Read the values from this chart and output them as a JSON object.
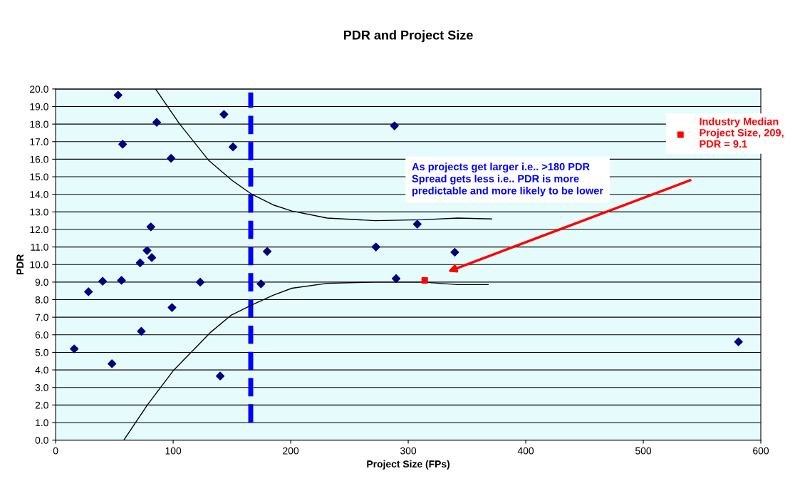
{
  "chart_data": {
    "type": "scatter",
    "title": "PDR and Project Size",
    "xlabel": "Project Size (FPs)",
    "ylabel": "PDR",
    "xlim": [
      0,
      600
    ],
    "xticks": [
      0,
      100,
      200,
      300,
      400,
      500,
      600
    ],
    "ylim": [
      0,
      20
    ],
    "yticks": [
      {
        "value": 0,
        "label": "0.0"
      },
      {
        "value": 1,
        "label": "1.0"
      },
      {
        "value": 2,
        "label": "2.0"
      },
      {
        "value": 3,
        "label": "3.0"
      },
      {
        "value": 4,
        "label": "4.0"
      },
      {
        "value": 5,
        "label": "5.0"
      },
      {
        "value": 6,
        "label": "6.0"
      },
      {
        "value": 7,
        "label": "7.0"
      },
      {
        "value": 8,
        "label": "8.0"
      },
      {
        "value": 9,
        "label": "9.0"
      },
      {
        "value": 10,
        "label": "10.0"
      },
      {
        "value": 11,
        "label": "11.0"
      },
      {
        "value": 12,
        "label": "12.0"
      },
      {
        "value": 13,
        "label": "13.0"
      },
      {
        "value": 14,
        "label": "14.0"
      },
      {
        "value": 15,
        "label": "15.0"
      },
      {
        "value": 16,
        "label": "16.0"
      },
      {
        "value": 17,
        "label": "17.0"
      },
      {
        "value": 18,
        "label": "18.0"
      },
      {
        "value": 19,
        "label": "19.0"
      },
      {
        "value": 20,
        "label": "20.0"
      }
    ],
    "grid": "y",
    "legend": "top right",
    "series": [
      {
        "color": "#000080",
        "marker": "diamond",
        "x": [
          15.8,
          27.9,
          40,
          56,
          71.9,
          81.8,
          99,
          72.9,
          47.9,
          123,
          140,
          174.7,
          53.1,
          86,
          57,
          98.2,
          143.2,
          150.9,
          81,
          77.8,
          288.3,
          307.7,
          180,
          272.5,
          339.6,
          289.7,
          581
        ],
        "values": [
          5.2,
          8.45,
          9.05,
          9.1,
          10.1,
          10.4,
          7.55,
          6.2,
          4.35,
          9.0,
          3.65,
          8.9,
          19.65,
          18.1,
          16.85,
          16.05,
          18.55,
          16.7,
          12.15,
          10.8,
          17.9,
          12.3,
          10.75,
          11.0,
          10.7,
          9.2,
          5.6
        ]
      },
      {
        "name": "Industry Median Project Size, 209, PDR = 9.1",
        "color": "#ff0000",
        "marker": "square",
        "x": [
          314
        ],
        "values": [
          9.1
        ]
      },
      {
        "type": "line",
        "color": "#000000",
        "marker": "none",
        "x": [
          85,
          105,
          130,
          150,
          167,
          185,
          201,
          231,
          272,
          312,
          342,
          371
        ],
        "values": [
          20,
          18.05,
          15.95,
          14.8,
          14.0,
          13.4,
          13.05,
          12.65,
          12.5,
          12.55,
          12.65,
          12.6
        ]
      },
      {
        "type": "line",
        "color": "#000000",
        "marker": "none",
        "x": [
          58,
          78,
          100,
          116,
          132,
          149,
          167,
          185,
          201,
          231,
          272,
          312,
          342,
          368
        ],
        "values": [
          0,
          2.0,
          3.95,
          5.05,
          6.15,
          7.1,
          7.7,
          8.25,
          8.65,
          8.93,
          9.0,
          9.0,
          8.86,
          8.86
        ]
      }
    ],
    "ref_lines": [
      {
        "axis": "x",
        "value": 166,
        "color": "#0000ff",
        "line_style": "dashed"
      }
    ],
    "annotations": [
      "As projects get larger i.e.. >180 PDR Spread gets less i.e.. PDR is more predictable and more likely to be lower"
    ]
  }
}
